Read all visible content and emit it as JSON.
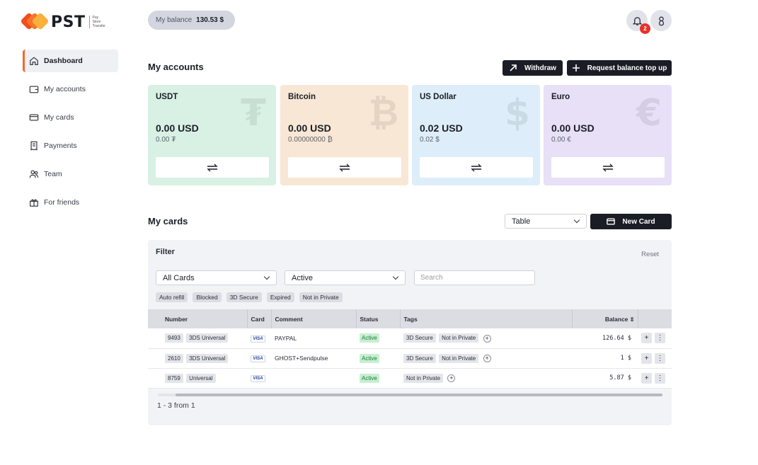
{
  "brand": {
    "name": "PST",
    "tagline": [
      "Pay",
      "Store",
      "Transfer"
    ],
    "colors": [
      "#f24e1e",
      "#f6752a",
      "#fbb03b"
    ]
  },
  "sidebar": {
    "items": [
      {
        "label": "Dashboard",
        "icon": "home-icon",
        "active": true
      },
      {
        "label": "My accounts",
        "icon": "wallet-icon"
      },
      {
        "label": "My cards",
        "icon": "card-icon"
      },
      {
        "label": "Payments",
        "icon": "receipt-icon"
      },
      {
        "label": "Team",
        "icon": "team-icon"
      },
      {
        "label": "For friends",
        "icon": "gift-icon"
      }
    ]
  },
  "header": {
    "balance_label": "My balance",
    "balance_value": "130.53 $",
    "notifications_count": "2"
  },
  "accounts": {
    "title": "My accounts",
    "withdraw_label": "Withdraw",
    "topup_label": "Request balance top up",
    "items": [
      {
        "name": "USDT",
        "amount": "0.00 USD",
        "sub": "0.00 ₮",
        "symbol": "₮",
        "color": "#d8f1e4"
      },
      {
        "name": "Bitcoin",
        "amount": "0.00 USD",
        "sub": "0.00000000 ₿",
        "symbol": "₿",
        "color": "#f8e7d4"
      },
      {
        "name": "US Dollar",
        "amount": "0.02 USD",
        "sub": "0.02 $",
        "symbol": "$",
        "color": "#ddeefa"
      },
      {
        "name": "Euro",
        "amount": "0.00 USD",
        "sub": "0.00 €",
        "symbol": "€",
        "color": "#e7e0f7"
      }
    ]
  },
  "cards": {
    "title": "My cards",
    "view_select": "Table",
    "new_card_label": "New Card",
    "filter": {
      "title": "Filter",
      "reset_label": "Reset",
      "type_select": "All Cards",
      "status_select": "Active",
      "search_placeholder": "Search",
      "chips": [
        "Auto refill",
        "Blocked",
        "3D Secure",
        "Expired",
        "Not in Private"
      ]
    },
    "columns": [
      "Number",
      "Card",
      "Comment",
      "Status",
      "Tags",
      "Balance"
    ],
    "rows": [
      {
        "number": "9493",
        "type": "3DS Universal",
        "brand": "VISA",
        "comment": "PAYPAL",
        "status": "Active",
        "tags": [
          "3D Secure",
          "Not in Private"
        ],
        "balance": "126.64 $"
      },
      {
        "number": "2610",
        "type": "3DS Universal",
        "brand": "VISA",
        "comment": "GHOST+Sendpulse",
        "status": "Active",
        "tags": [
          "3D Secure",
          "Not in Private"
        ],
        "balance": "1 $"
      },
      {
        "number": "8759",
        "type": "Universal",
        "brand": "VISA",
        "comment": "",
        "status": "Active",
        "tags": [
          "Not in Private"
        ],
        "balance": "5.87 $"
      }
    ],
    "pagination": "1 - 3 from 1"
  }
}
